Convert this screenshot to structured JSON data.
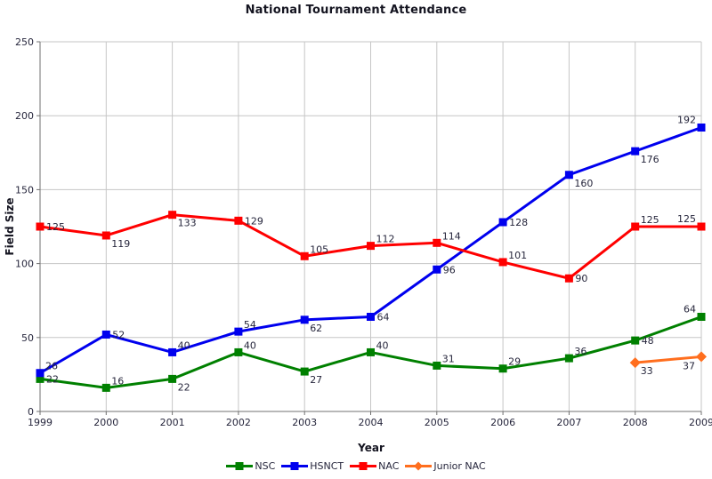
{
  "chart_data": {
    "type": "line",
    "title": "National Tournament Attendance",
    "xlabel": "Year",
    "ylabel": "Field Size",
    "ylim": [
      0,
      250
    ],
    "yticks": [
      0,
      50,
      100,
      150,
      200,
      250
    ],
    "grid": true,
    "legend_position": "bottom",
    "categories": [
      "1999",
      "2000",
      "2001",
      "2002",
      "2003",
      "2004",
      "2005",
      "2006",
      "2007",
      "2008",
      "2009"
    ],
    "series": [
      {
        "name": "NSC",
        "color": "#008000",
        "marker": "square",
        "values": [
          22,
          16,
          22,
          40,
          27,
          40,
          31,
          29,
          36,
          48,
          64
        ],
        "label_pos": [
          "r",
          "ar",
          "br",
          "ar",
          "br",
          "ar",
          "ar",
          "ar",
          "ar",
          "r",
          "al"
        ]
      },
      {
        "name": "HSNCT",
        "color": "#0000ee",
        "marker": "square",
        "values": [
          26,
          52,
          40,
          54,
          62,
          64,
          96,
          128,
          160,
          176,
          192
        ],
        "label_pos": [
          "ar",
          "r",
          "ar",
          "ar",
          "br",
          "r",
          "r",
          "r",
          "br",
          "br",
          "al"
        ]
      },
      {
        "name": "NAC",
        "color": "#ff0000",
        "marker": "square",
        "values": [
          125,
          119,
          133,
          129,
          105,
          112,
          114,
          101,
          90,
          125,
          125
        ],
        "label_pos": [
          "r",
          "br",
          "br",
          "r",
          "ar",
          "ar",
          "ar",
          "ar",
          "r",
          "ar",
          "al"
        ]
      },
      {
        "name": "Junior NAC",
        "color": "#ff6e1e",
        "marker": "diamond",
        "values": [
          null,
          null,
          null,
          null,
          null,
          null,
          null,
          null,
          null,
          33,
          37
        ],
        "label_pos": [
          null,
          null,
          null,
          null,
          null,
          null,
          null,
          null,
          null,
          "br",
          "bl"
        ]
      }
    ],
    "colors": {
      "grid": "#c6c6c6",
      "axis": "#707070",
      "tick_text": "#26263c",
      "label_text": "#26263c"
    }
  }
}
